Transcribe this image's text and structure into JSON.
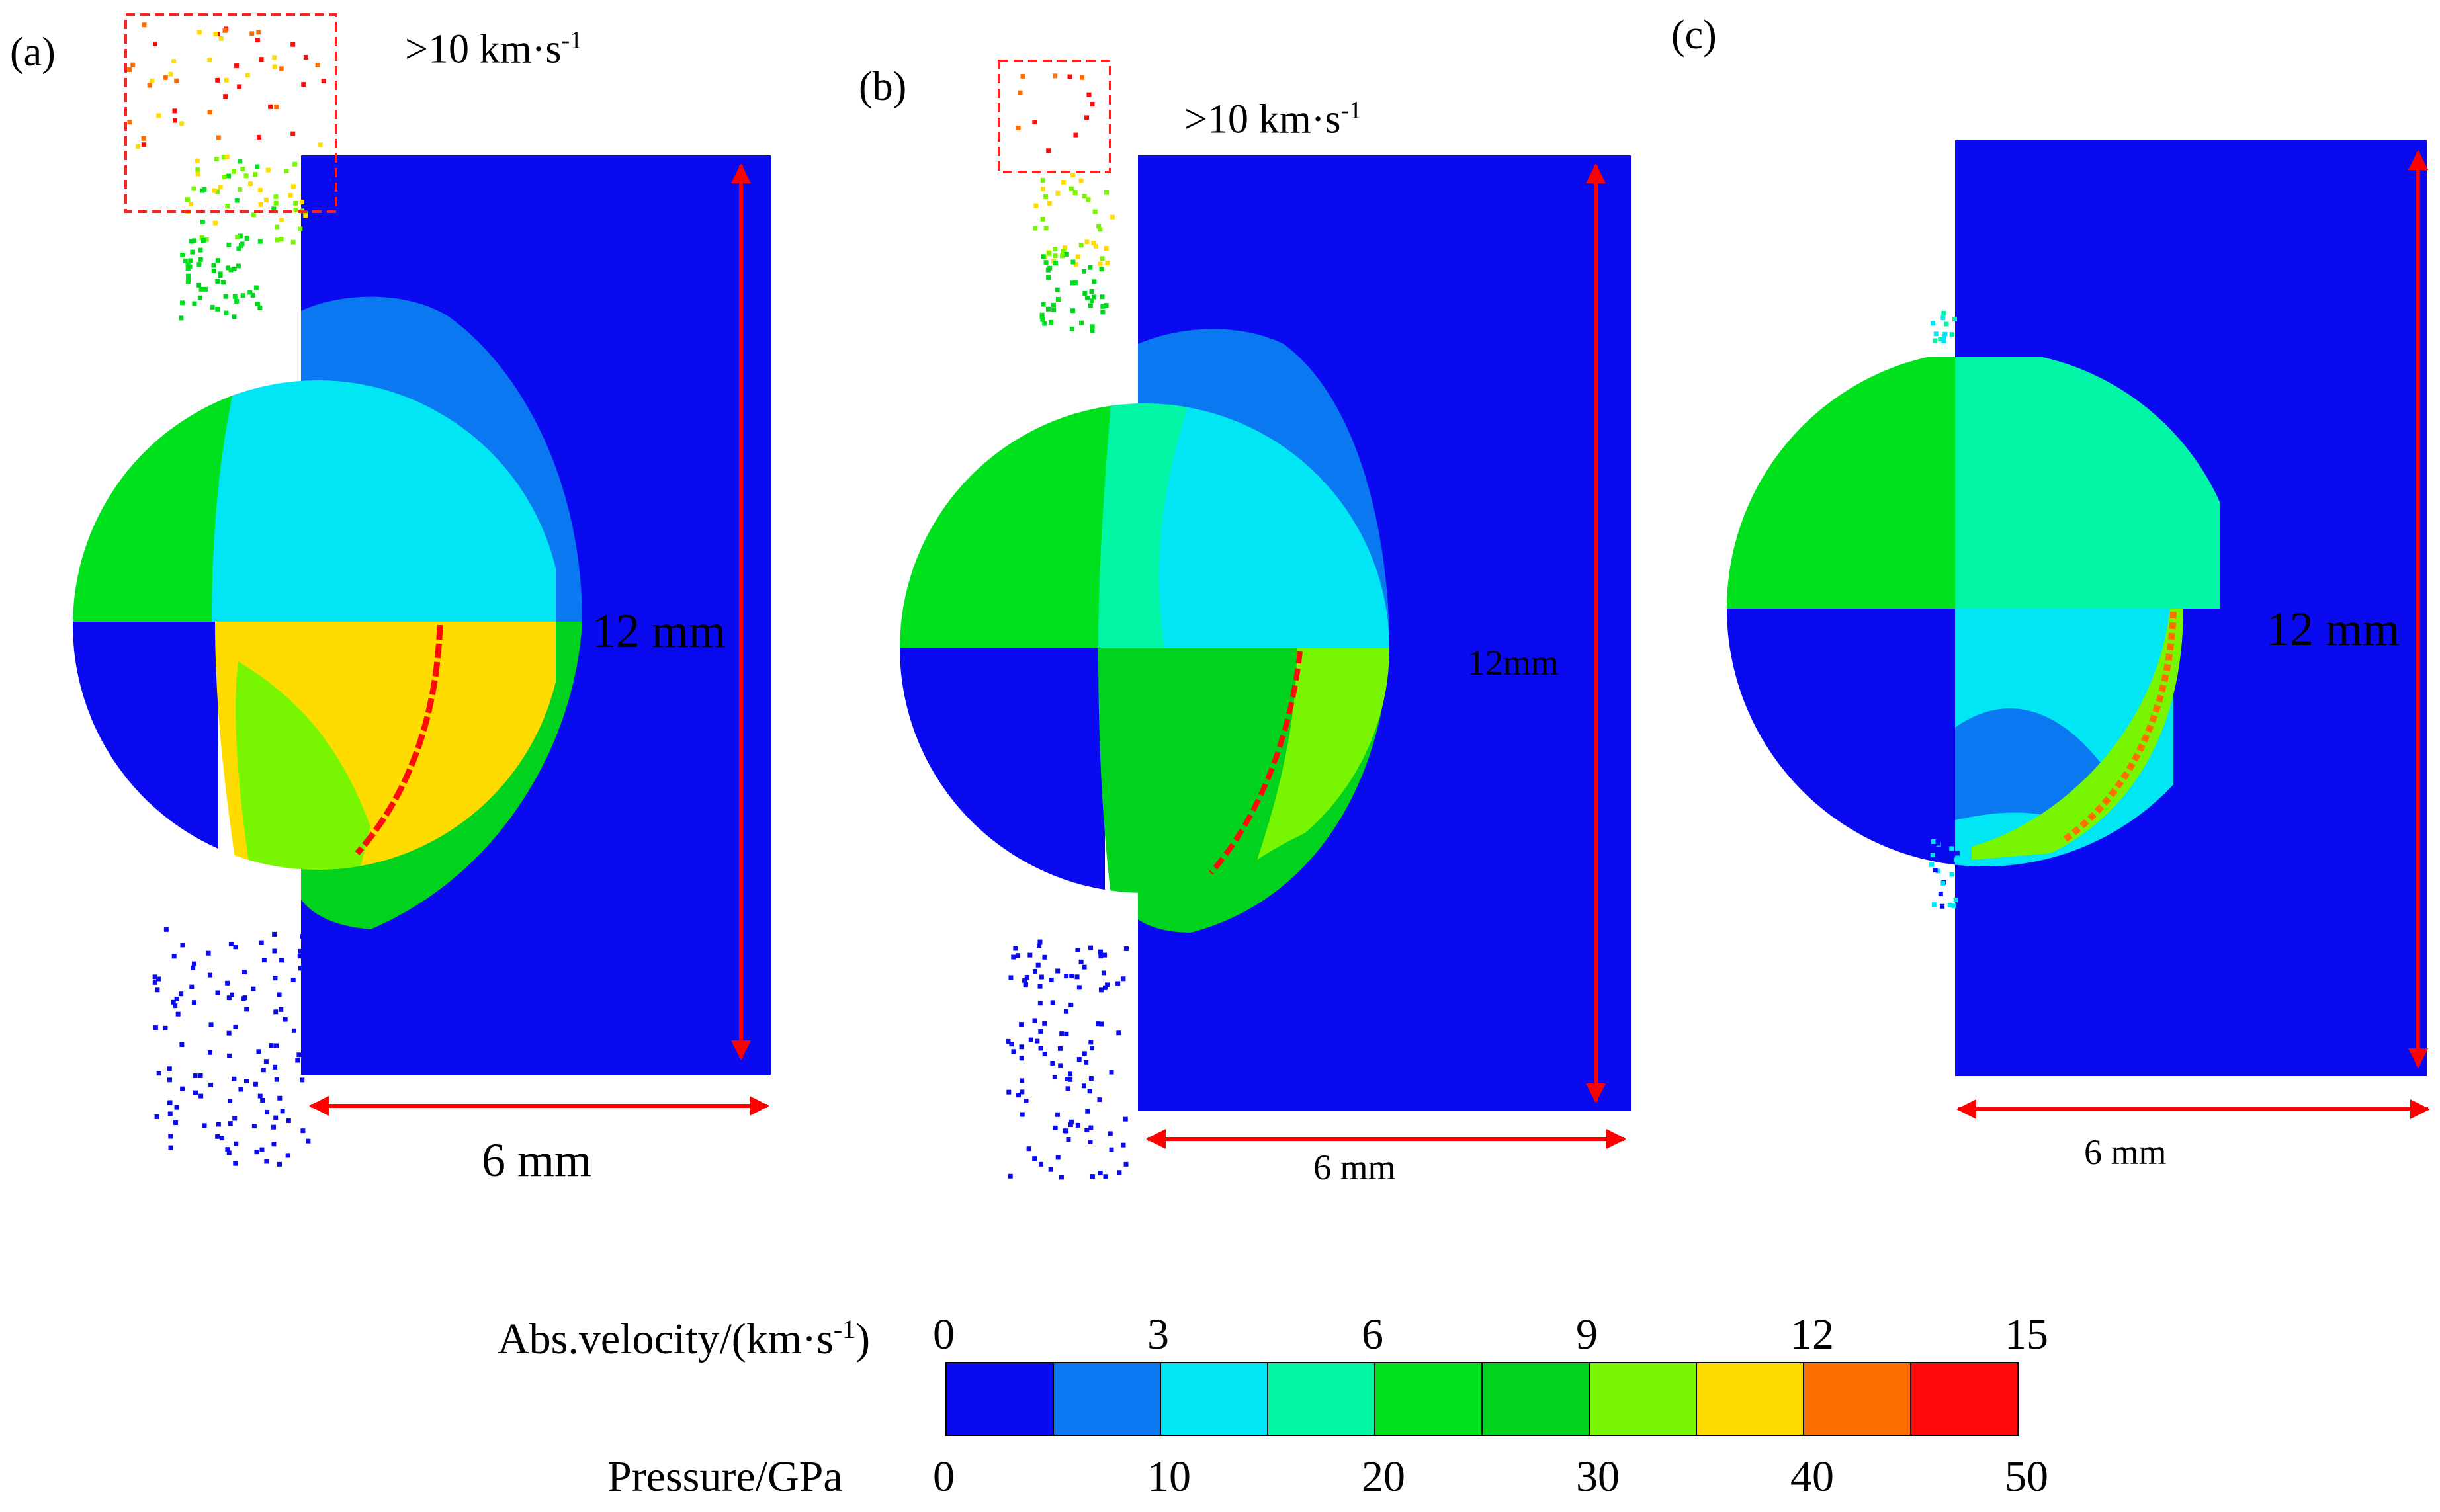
{
  "figure": {
    "panels": [
      {
        "letter": "(a)",
        "velocity_note": ">10 km·s",
        "velocity_exp": "-1",
        "height_label": "12 mm",
        "width_label": "6 mm"
      },
      {
        "letter": "(b)",
        "velocity_note": ">10 km·s",
        "velocity_exp": "-1",
        "height_label": "12mm",
        "width_label": "6 mm"
      },
      {
        "letter": "(c)",
        "height_label": "12 mm",
        "width_label": "6 mm"
      }
    ],
    "colorbar": {
      "velocity_title": "Abs.velocity/(km·s",
      "velocity_exp": "-1",
      "velocity_close": ")",
      "velocity_ticks": [
        "0",
        "3",
        "6",
        "9",
        "12",
        "15"
      ],
      "pressure_title": "Pressure/GPa",
      "pressure_ticks": [
        "0",
        "10",
        "20",
        "30",
        "40",
        "50"
      ],
      "colors": [
        "#0a0af0",
        "#0a78f0",
        "#00e6f5",
        "#00f5a5",
        "#00e11e",
        "#00d21e",
        "#78f500",
        "#ffdc00",
        "#ff6e00",
        "#ff0a0a"
      ]
    },
    "colors": {
      "target": "#0a0af0",
      "dimension_arrow": "#ff0000",
      "highlight_box": "#ff2020"
    }
  }
}
